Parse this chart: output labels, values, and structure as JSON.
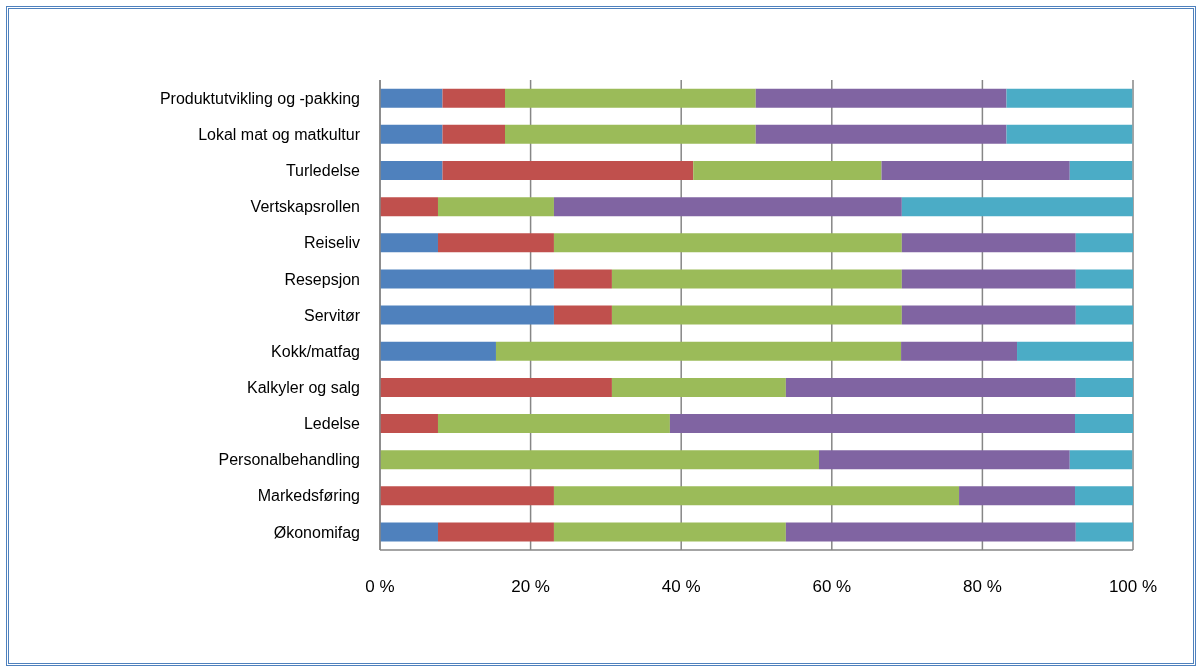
{
  "chart_data": {
    "type": "bar",
    "orientation": "horizontal",
    "stacked": true,
    "categories": [
      "Produktutvikling og -pakking",
      "Lokal mat og matkultur",
      "Turledelse",
      "Vertskapsrollen",
      "Reiseliv",
      "Resepsjon",
      "Servitør",
      "Kokk/matfag",
      "Kalkyler og salg",
      "Ledelse",
      "Personalbehandling",
      "Markedsføring",
      "Økonomifag"
    ],
    "series": [
      {
        "color": "#4f81bd",
        "values": [
          8.3,
          8.3,
          8.3,
          0,
          7.7,
          23.1,
          23.1,
          15.4,
          0,
          0,
          0,
          0,
          7.7
        ]
      },
      {
        "color": "#c0504d",
        "values": [
          8.3,
          8.3,
          33.3,
          7.7,
          15.4,
          7.7,
          7.7,
          0,
          30.8,
          7.7,
          0,
          23.1,
          15.4
        ]
      },
      {
        "color": "#9bbb59",
        "values": [
          33.3,
          33.3,
          25,
          15.4,
          46.2,
          38.5,
          38.5,
          53.8,
          23.1,
          30.8,
          58.3,
          53.8,
          30.8
        ]
      },
      {
        "color": "#8064a2",
        "values": [
          33.3,
          33.3,
          25,
          46.2,
          23.1,
          23.1,
          23.1,
          15.4,
          38.5,
          53.8,
          33.3,
          15.4,
          38.5
        ]
      },
      {
        "color": "#4bacc6",
        "values": [
          16.7,
          16.7,
          8.3,
          30.8,
          7.7,
          7.7,
          7.7,
          15.4,
          7.7,
          7.7,
          8.3,
          7.7,
          7.7
        ]
      }
    ],
    "xlim": [
      0,
      100
    ],
    "xticks": [
      {
        "value": 0,
        "label": "0 %"
      },
      {
        "value": 20,
        "label": "20 %"
      },
      {
        "value": 40,
        "label": "40 %"
      },
      {
        "value": 60,
        "label": "60 %"
      },
      {
        "value": 80,
        "label": "80 %"
      },
      {
        "value": 100,
        "label": "100 %"
      }
    ],
    "grid": "x",
    "legend": false
  }
}
